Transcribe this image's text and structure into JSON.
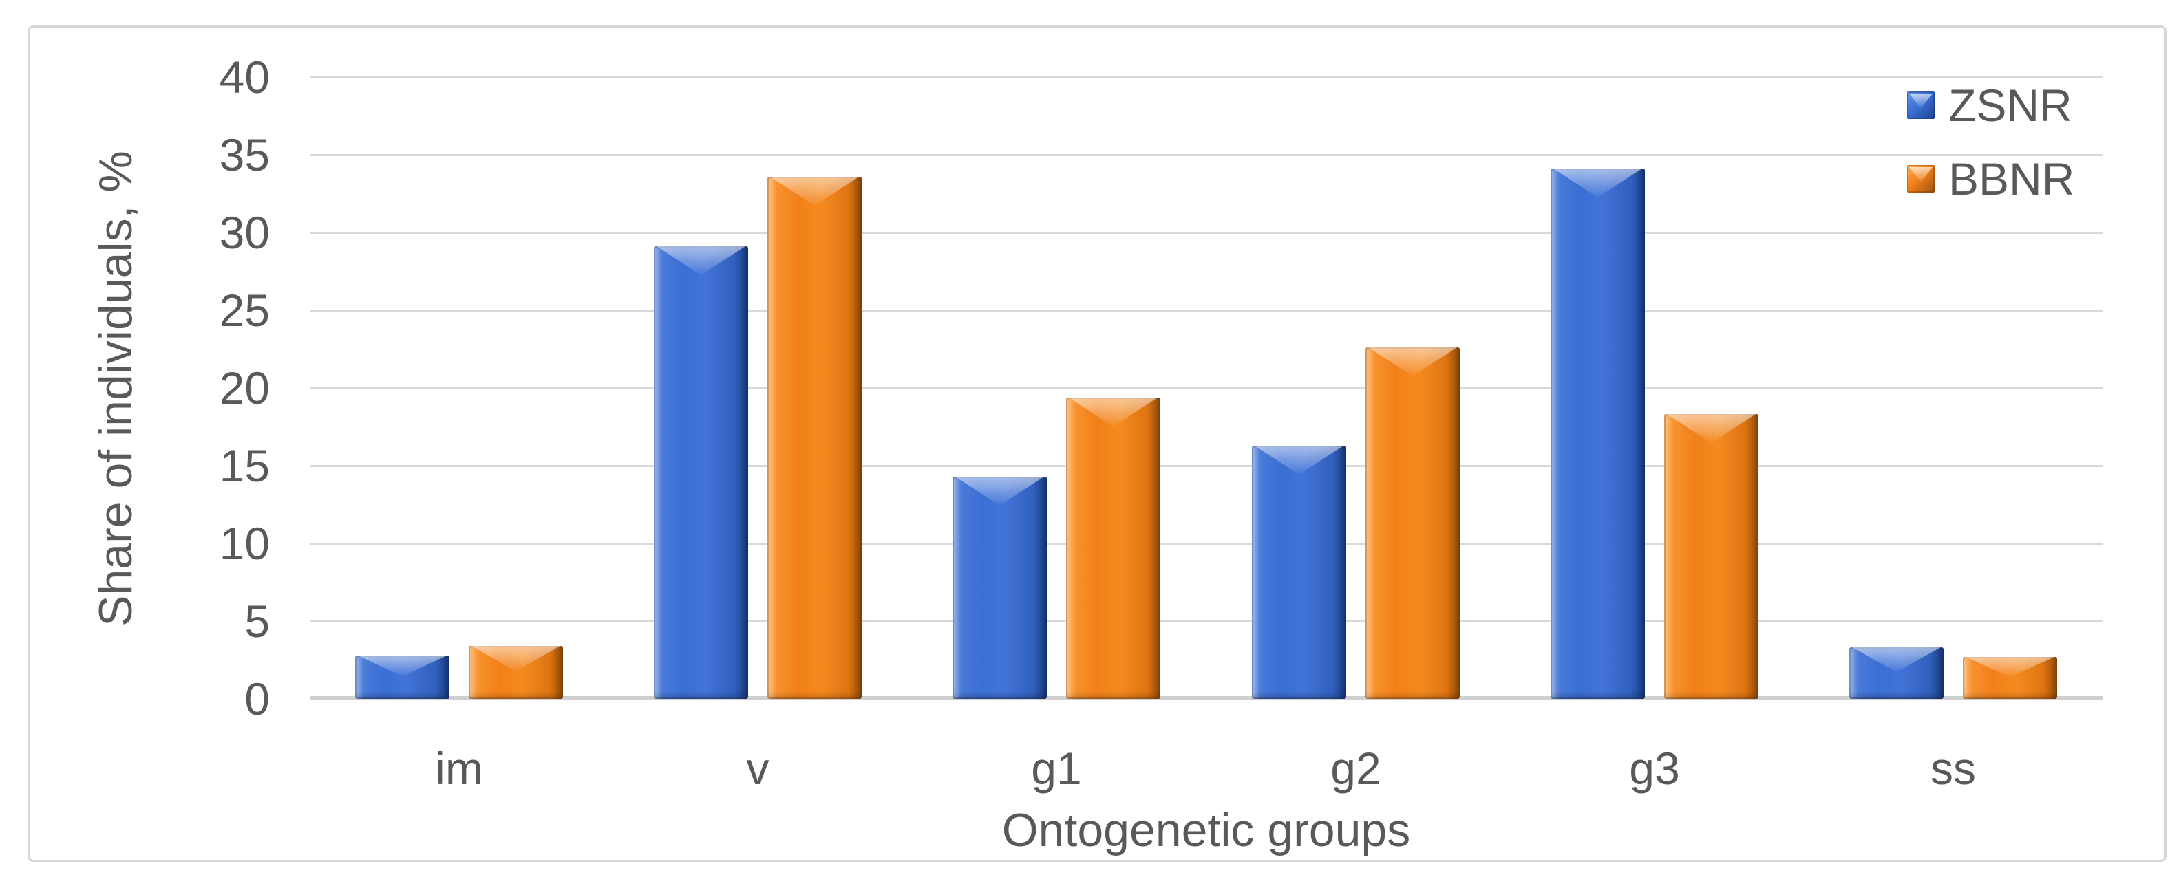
{
  "chart_data": {
    "type": "bar",
    "title": "",
    "categories": [
      "im",
      "v",
      "g1",
      "g2",
      "g3",
      "ss"
    ],
    "series": [
      {
        "name": "ZSNR",
        "color": "#3A6FD4",
        "values": [
          2.8,
          29.1,
          14.3,
          16.3,
          34.1,
          3.3
        ]
      },
      {
        "name": "BBNR",
        "color": "#F28019",
        "values": [
          3.4,
          33.6,
          19.4,
          22.6,
          18.3,
          2.7
        ]
      }
    ],
    "xlabel": "Ontogenetic groups",
    "ylabel": "Share of individuals, %",
    "ylim": [
      0,
      40
    ],
    "ytick_step": 5,
    "yticks": [
      0,
      5,
      10,
      15,
      20,
      25,
      30,
      35,
      40
    ],
    "grid": "horizontal",
    "legend_position": "top-right",
    "bar_style": "beveled-3d"
  },
  "style": {
    "text_color": "#595959",
    "gridline_color": "#D9D9D9",
    "zero_line_color": "#CFCFCF",
    "frame_border_color": "#D6D6D6",
    "background": "#FFFFFF"
  }
}
